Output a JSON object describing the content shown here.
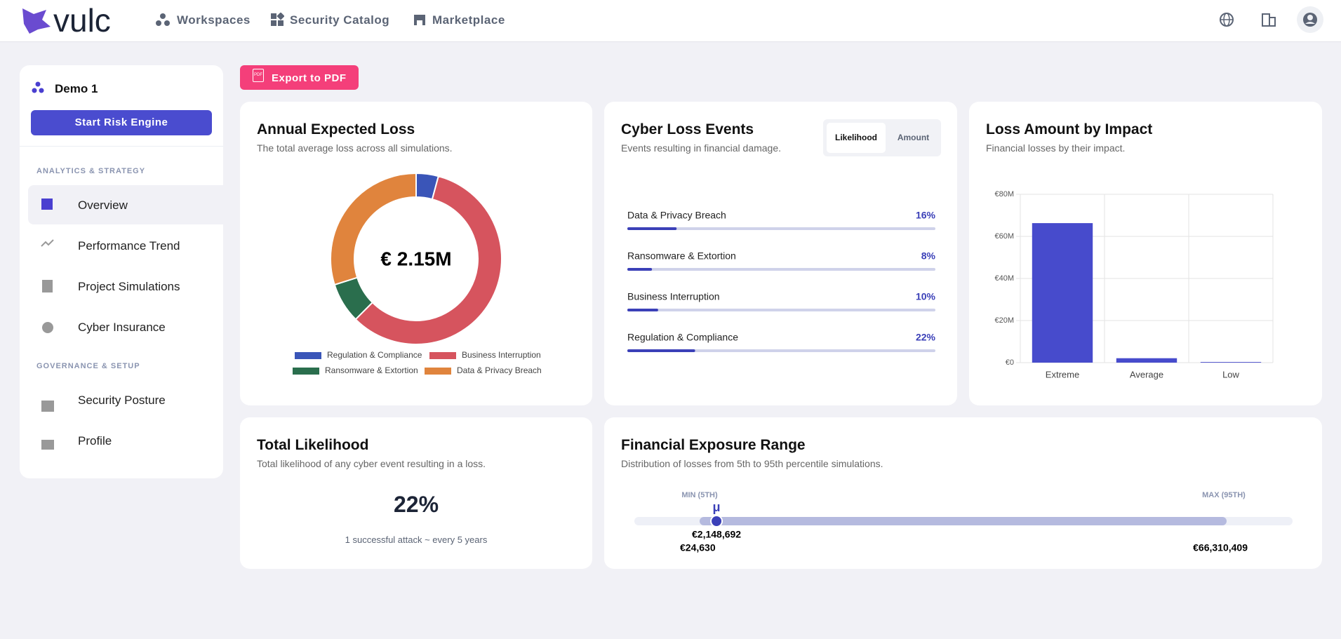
{
  "header": {
    "logo": "vulc",
    "nav": [
      "Workspaces",
      "Security Catalog",
      "Marketplace"
    ]
  },
  "sidebar": {
    "project": "Demo 1",
    "button": "Start Risk Engine",
    "sections": [
      {
        "title": "ANALYTICS & STRATEGY",
        "items": [
          "Overview",
          "Performance Trend",
          "Project Simulations",
          "Cyber Insurance"
        ]
      },
      {
        "title": "GOVERNANCE & SETUP",
        "items": [
          "Security Posture",
          "Profile"
        ]
      }
    ]
  },
  "export_button": {
    "icon": "PDF",
    "label": "Export to PDF"
  },
  "chart_data": [
    {
      "type": "pie",
      "title": "Annual Expected Loss",
      "subtitle": "The total average loss across all simulations.",
      "center_label": "€ 2.15M",
      "categories": [
        "Regulation & Compliance",
        "Business Interruption",
        "Ransomware & Extortion",
        "Data & Privacy Breach"
      ],
      "values": [
        4.2,
        58.3,
        7.6,
        29.9
      ],
      "colors": [
        "#3a55b8",
        "#d6545e",
        "#2a6e4d",
        "#e0843d"
      ]
    },
    {
      "type": "bar",
      "title": "Loss Amount by Impact",
      "subtitle": "Financial losses by their impact.",
      "categories": [
        "Extreme",
        "Average",
        "Low"
      ],
      "values": [
        66300000,
        2100000,
        300000
      ],
      "color": "#474bcc",
      "ylim": [
        0,
        80000000
      ],
      "yticks": [
        {
          "value": 0,
          "label": "€0"
        },
        {
          "value": 20000000,
          "label": "€20M"
        },
        {
          "value": 40000000,
          "label": "€40M"
        },
        {
          "value": 60000000,
          "label": "€60M"
        },
        {
          "value": 80000000,
          "label": "€80M"
        }
      ],
      "grid": true
    }
  ],
  "loss_events": {
    "title": "Cyber Loss Events",
    "subtitle": "Events resulting in financial damage.",
    "tabs": [
      "Likelihood",
      "Amount"
    ],
    "categories": [
      "Data & Privacy Breach",
      "Ransomware & Extortion",
      "Business Interruption",
      "Regulation & Compliance"
    ],
    "values": [
      16,
      8,
      10,
      22
    ],
    "value_labels": [
      "16%",
      "8%",
      "10%",
      "22%"
    ]
  },
  "total_likelihood": {
    "title": "Total Likelihood",
    "subtitle": "Total likelihood of any cyber event resulting in a loss.",
    "value": "22%",
    "note": "1 successful attack ~ every 5 years"
  },
  "exposure": {
    "title": "Financial Exposure Range",
    "subtitle": "Distribution of losses from 5th to 95th percentile simulations.",
    "min_title": "MIN (5TH)",
    "max_title": "MAX (95TH)",
    "mean_symbol": "μ",
    "min": 24630,
    "mean": 2148692,
    "max": 66310409,
    "min_label": "€24,630",
    "mean_label": "€2,148,692",
    "max_label": "€66,310,409"
  }
}
